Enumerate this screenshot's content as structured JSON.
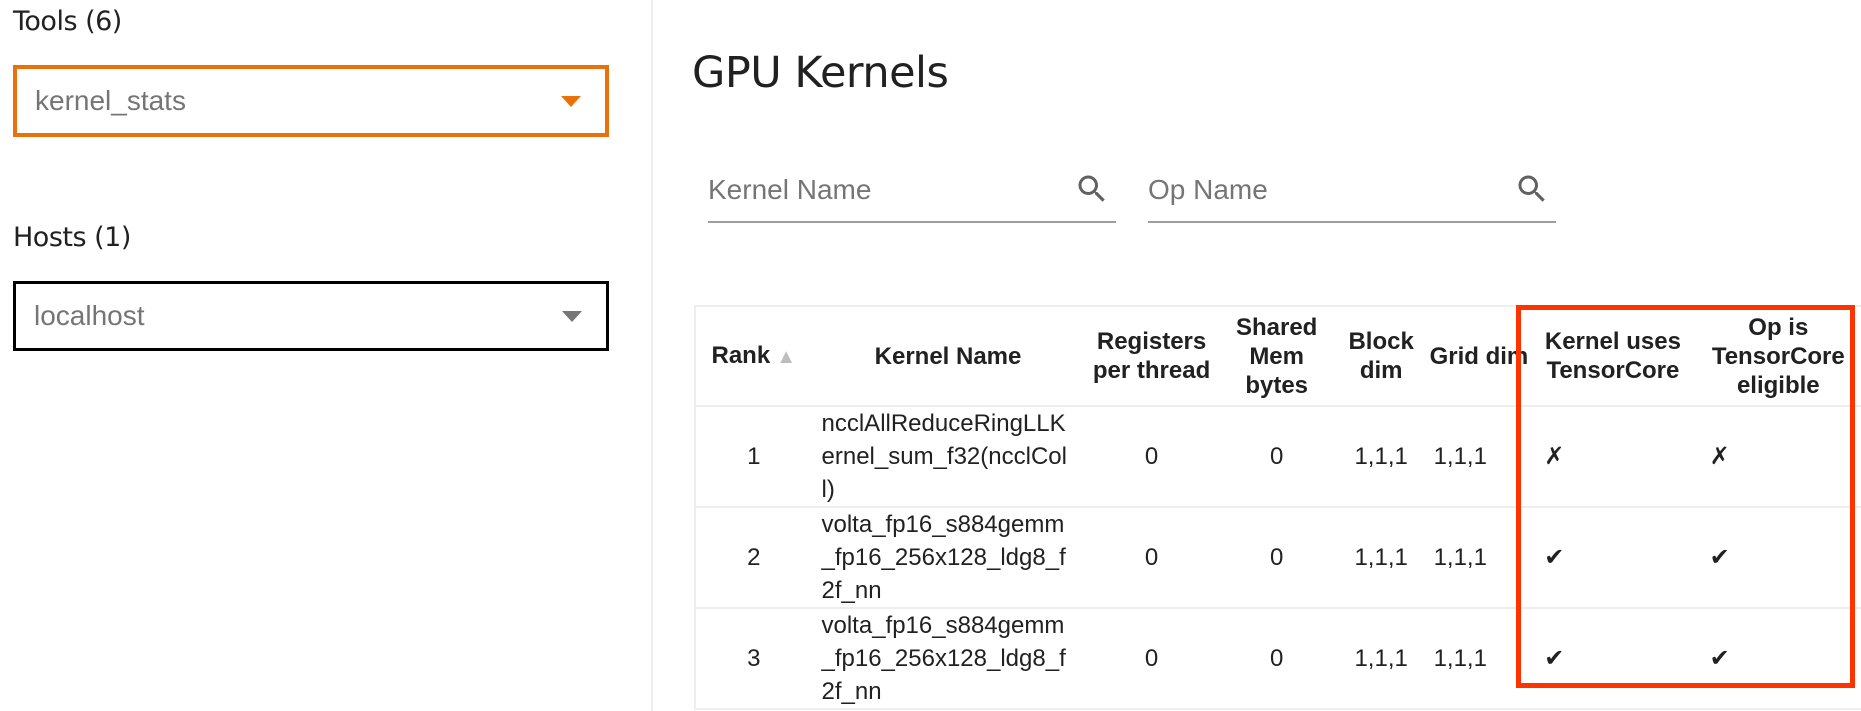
{
  "sidebar": {
    "tools_label": "Tools (6)",
    "tools_value": "kernel_stats",
    "hosts_label": "Hosts (1)",
    "hosts_value": "localhost"
  },
  "colors": {
    "accent": "#e8710a",
    "highlight": "#ff3300"
  },
  "main": {
    "title": "GPU Kernels",
    "kernel_search_placeholder": "Kernel Name",
    "op_search_placeholder": "Op Name",
    "table": {
      "headers": [
        "Rank",
        "Kernel Name",
        "Registers per thread",
        "Shared Mem bytes",
        "Block dim",
        "Grid dim",
        "Kernel uses TensorCore",
        "Op is TensorCore eligible"
      ],
      "sort_indicator": "▲",
      "rows": [
        [
          "1",
          "ncclAllReduceRingLLKernel_sum_f32(ncclColl)",
          "0",
          "0",
          "1,1,1",
          "1,1,1",
          "✗",
          "✗"
        ],
        [
          "2",
          "volta_fp16_s884gemm_fp16_256x128_ldg8_f2f_nn",
          "0",
          "0",
          "1,1,1",
          "1,1,1",
          "✔",
          "✔"
        ],
        [
          "3",
          "volta_fp16_s884gemm_fp16_256x128_ldg8_f2f_nn",
          "0",
          "0",
          "1,1,1",
          "1,1,1",
          "✔",
          "✔"
        ]
      ]
    }
  }
}
